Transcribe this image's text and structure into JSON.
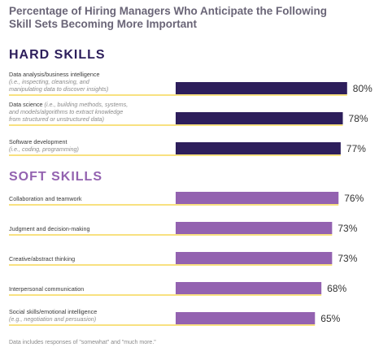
{
  "title_lines": [
    "Percentage of Hiring Managers Who Anticipate the Following",
    "Skill Sets Becoming More Important"
  ],
  "footnote": "Data includes responses of \"somewhat\" and \"much more.\"",
  "colors": {
    "title": "#6a6577",
    "hard_heading": "#2d1e5b",
    "hard_bar": "#2d1e5b",
    "soft_heading": "#9362b0",
    "soft_bar": "#9362b0",
    "divider": "#f2c300",
    "label": "#3a3a3a",
    "sublabel": "#8a8a8a",
    "value": "#333333"
  },
  "chart_data": {
    "type": "bar",
    "orientation": "horizontal",
    "value_format": "percent",
    "xlim": [
      0,
      100
    ],
    "groups": [
      {
        "name": "HARD SKILLS",
        "items": [
          {
            "label": "Data analysis/business intelligence",
            "sublabel": [
              "(i.e., inspecting, cleansing, and",
              "manipulating data to discover insights)"
            ],
            "value": 80
          },
          {
            "label": "Data science",
            "label_suffix": " (i.e., building methods, systems,",
            "sublabel": [
              "and models/algorithms to extract knowledge",
              "from structured or unstructured data)"
            ],
            "value": 78
          },
          {
            "label": "Software development",
            "sublabel": [
              "(i.e., coding, programming)"
            ],
            "value": 77
          }
        ]
      },
      {
        "name": "SOFT SKILLS",
        "items": [
          {
            "label": "Collaboration and teamwork",
            "sublabel": [],
            "value": 76
          },
          {
            "label": "Judgment and decision-making",
            "sublabel": [],
            "value": 73
          },
          {
            "label": "Creative/abstract thinking",
            "sublabel": [],
            "value": 73
          },
          {
            "label": "Interpersonal communication",
            "sublabel": [],
            "value": 68
          },
          {
            "label": "Social skills/emotional intelligence",
            "sublabel": [
              "(e.g., negotiation and persuasion)"
            ],
            "value": 65
          }
        ]
      }
    ]
  }
}
